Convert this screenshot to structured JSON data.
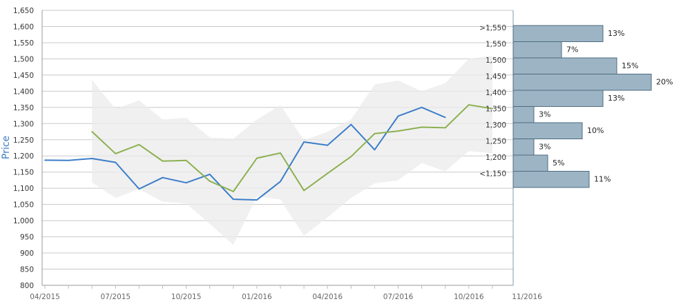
{
  "chart_data": {
    "type": "line",
    "ylabel": "Price",
    "ylim": [
      800,
      1650
    ],
    "y_ticks": [
      "800",
      "850",
      "900",
      "950",
      "1,000",
      "1,050",
      "1,100",
      "1,150",
      "1,200",
      "1,250",
      "1,300",
      "1,350",
      "1,400",
      "1,450",
      "1,500",
      "1,550",
      "1,600",
      "1,650"
    ],
    "x_tick_labels": [
      "04/2015",
      "07/2015",
      "10/2015",
      "01/2016",
      "04/2016",
      "07/2016",
      "10/2016",
      "11/2016"
    ],
    "grid": true,
    "months": [
      "04/2015",
      "05/2015",
      "06/2015",
      "07/2015",
      "08/2015",
      "09/2015",
      "10/2015",
      "11/2015",
      "12/2015",
      "01/2016",
      "02/2016",
      "03/2016",
      "04/2016",
      "05/2016",
      "06/2016",
      "07/2016",
      "08/2016",
      "09/2016",
      "10/2016",
      "11/2016"
    ],
    "series": [
      {
        "color": "#3a7dc9",
        "values": [
          1187,
          1186,
          1192,
          1180,
          1098,
          1133,
          1117,
          1143,
          1066,
          1064,
          1121,
          1243,
          1233,
          1297,
          1219,
          1323,
          1350,
          1319,
          null,
          null
        ]
      },
      {
        "color": "#8bb04f",
        "values": [
          null,
          null,
          1275,
          1207,
          1235,
          1184,
          1186,
          1122,
          1090,
          1193,
          1209,
          1093,
          1146,
          1198,
          1269,
          1277,
          1289,
          1287,
          1358,
          1346
        ]
      }
    ],
    "range_band": {
      "color": "#ebebeb",
      "upper": [
        null,
        null,
        1435,
        1345,
        1372,
        1313,
        1318,
        1257,
        1253,
        1312,
        1357,
        1248,
        1275,
        1313,
        1421,
        1433,
        1400,
        1425,
        1500,
        1510
      ],
      "lower": [
        null,
        null,
        1118,
        1070,
        1098,
        1058,
        1053,
        990,
        925,
        1075,
        1065,
        953,
        1010,
        1070,
        1115,
        1125,
        1178,
        1152,
        1215,
        1208
      ]
    },
    "histogram": {
      "color": "#9db4c4",
      "bins": [
        {
          "label": ">1,550",
          "pct": 13,
          "text": "13%"
        },
        {
          "label": "1,550",
          "pct": 7,
          "text": "7%"
        },
        {
          "label": "1,500",
          "pct": 15,
          "text": "15%"
        },
        {
          "label": "1,450",
          "pct": 20,
          "text": "20%"
        },
        {
          "label": "1,400",
          "pct": 13,
          "text": "13%"
        },
        {
          "label": "1,350",
          "pct": 3,
          "text": "3%"
        },
        {
          "label": "1,300",
          "pct": 10,
          "text": "10%"
        },
        {
          "label": "1,250",
          "pct": 3,
          "text": "3%"
        },
        {
          "label": "1,200",
          "pct": 5,
          "text": "5%"
        },
        {
          "label": "<1,150",
          "pct": 11,
          "text": "11%"
        }
      ]
    }
  }
}
